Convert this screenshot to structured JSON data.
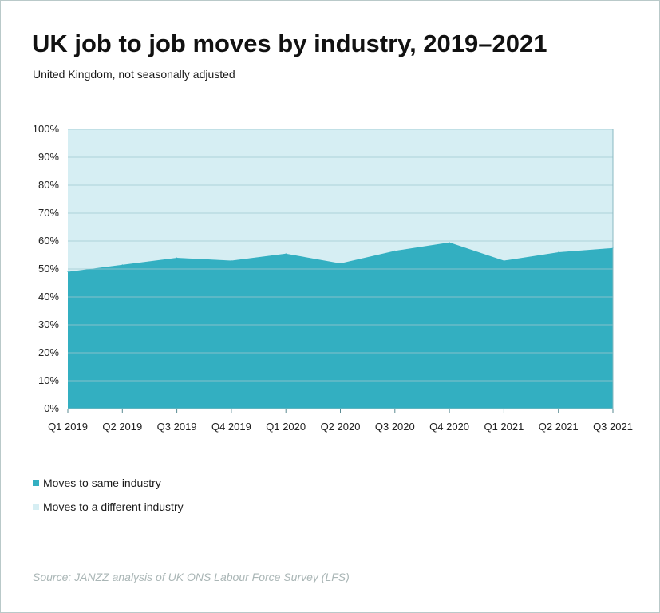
{
  "header": {
    "title": "UK job to job moves by industry, 2019–2021",
    "subtitle": "United Kingdom, not seasonally adjusted"
  },
  "chart_data": {
    "type": "area",
    "stacked": true,
    "title": "UK job to job moves by industry, 2019–2021",
    "subtitle": "United Kingdom, not seasonally adjusted",
    "categories": [
      "Q1 2019",
      "Q2 2019",
      "Q3 2019",
      "Q4 2019",
      "Q1 2020",
      "Q2 2020",
      "Q3 2020",
      "Q4 2020",
      "Q1 2021",
      "Q2 2021",
      "Q3 2021"
    ],
    "series": [
      {
        "name": "Moves to same industry",
        "values": [
          49,
          51.5,
          54,
          53,
          55.5,
          52,
          56.5,
          59.5,
          53,
          56,
          57.5
        ],
        "color": "#33afc1"
      },
      {
        "name": "Moves to a different industry",
        "values": [
          51,
          48.5,
          46,
          47,
          44.5,
          48,
          43.5,
          40.5,
          47,
          44,
          42.5
        ],
        "color": "#d6eef3"
      }
    ],
    "yticks": [
      "0%",
      "10%",
      "20%",
      "30%",
      "40%",
      "50%",
      "60%",
      "70%",
      "80%",
      "90%",
      "100%"
    ],
    "ylim": [
      0,
      100
    ],
    "xlabel": "",
    "ylabel": "",
    "grid": true,
    "legend_position": "bottom-left"
  },
  "legend": {
    "same": "Moves to same industry",
    "different": "Moves to a different industry"
  },
  "colors": {
    "same": "#33afc1",
    "different": "#d6eef3",
    "grid": "#9fc9d0"
  },
  "source": "Source: JANZZ analysis of UK ONS Labour Force Survey (LFS)"
}
